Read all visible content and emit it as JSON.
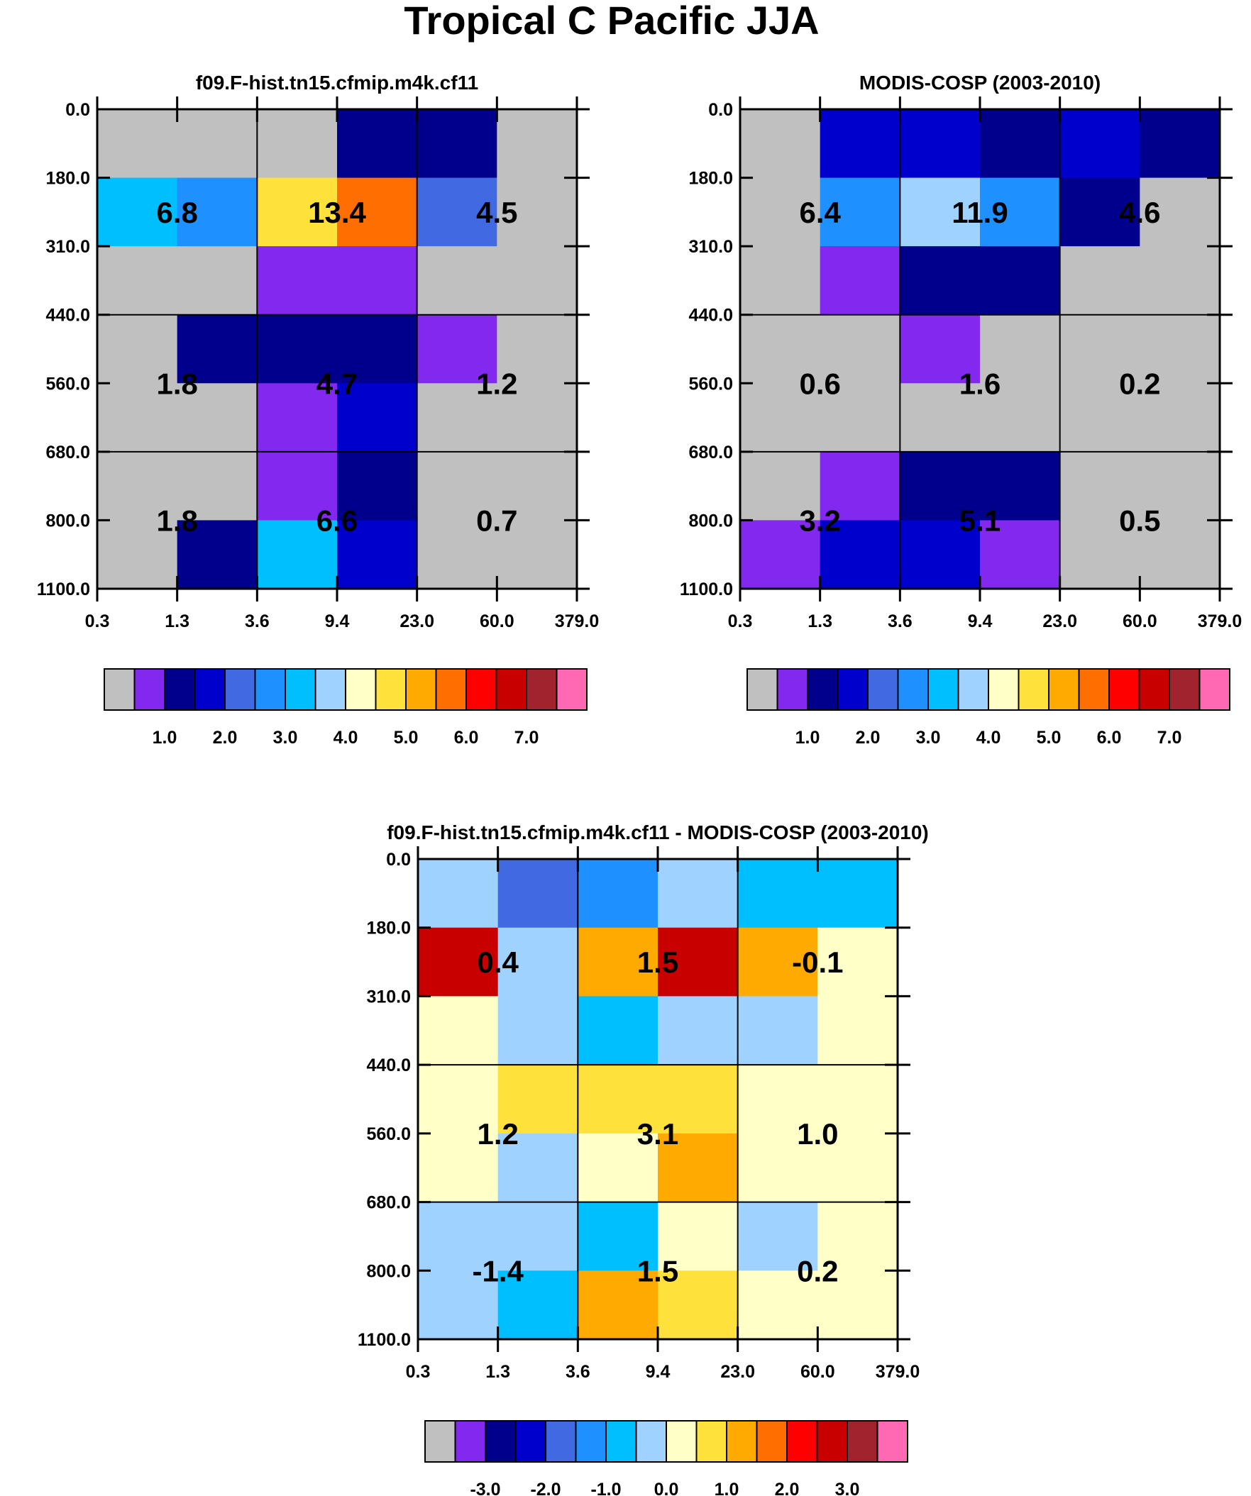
{
  "figure": {
    "title": "Tropical C Pacific JJA"
  },
  "colors": {
    "palette": [
      "#c0c0c0",
      "#8228ef",
      "#00008c",
      "#0000cd",
      "#4169e1",
      "#1e90ff",
      "#00bfff",
      "#a0d2ff",
      "#ffffc8",
      "#ffe13c",
      "#ffaa00",
      "#ff6e00",
      "#ff0000",
      "#c80000",
      "#a0232d",
      "#ff69b4"
    ]
  },
  "chart_data": [
    {
      "type": "heatmap",
      "title": "f09.F-hist.tn15.cfmip.m4k.cf11",
      "x_tick_labels": [
        "0.3",
        "1.3",
        "3.6",
        "9.4",
        "23.0",
        "60.0",
        "379.0"
      ],
      "y_tick_labels": [
        "0.0",
        "180.0",
        "310.0",
        "440.0",
        "560.0",
        "680.0",
        "800.0",
        "1100.0"
      ],
      "cell_color_index": [
        [
          0,
          0,
          0,
          2,
          2,
          0
        ],
        [
          6,
          5,
          9,
          11,
          4,
          0
        ],
        [
          0,
          0,
          1,
          1,
          0,
          0
        ],
        [
          0,
          2,
          2,
          2,
          1,
          0
        ],
        [
          0,
          0,
          1,
          3,
          0,
          0
        ],
        [
          0,
          0,
          1,
          2,
          0,
          0
        ],
        [
          0,
          2,
          6,
          3,
          0,
          0
        ]
      ],
      "annotations": [
        {
          "row": 1,
          "col": 1,
          "text": "6.8"
        },
        {
          "row": 1,
          "col": 3,
          "text": "13.4"
        },
        {
          "row": 1,
          "col": 5,
          "text": "4.5"
        },
        {
          "row": 3.5,
          "col": 1,
          "text": "1.8"
        },
        {
          "row": 3.5,
          "col": 3,
          "text": "4.7"
        },
        {
          "row": 3.5,
          "col": 5,
          "text": "1.2"
        },
        {
          "row": 5.5,
          "col": 1,
          "text": "1.8"
        },
        {
          "row": 5.5,
          "col": 3,
          "text": "6.6"
        },
        {
          "row": 5.5,
          "col": 5,
          "text": "0.7"
        }
      ],
      "colorbar": {
        "labels": [
          "1.0",
          "2.0",
          "3.0",
          "4.0",
          "5.0",
          "6.0",
          "7.0"
        ]
      }
    },
    {
      "type": "heatmap",
      "title": "MODIS-COSP (2003-2010)",
      "x_tick_labels": [
        "0.3",
        "1.3",
        "3.6",
        "9.4",
        "23.0",
        "60.0",
        "379.0"
      ],
      "y_tick_labels": [
        "0.0",
        "180.0",
        "310.0",
        "440.0",
        "560.0",
        "680.0",
        "800.0",
        "1100.0"
      ],
      "cell_color_index": [
        [
          0,
          3,
          3,
          2,
          3,
          2
        ],
        [
          0,
          5,
          7,
          5,
          2,
          0
        ],
        [
          0,
          1,
          2,
          2,
          0,
          0
        ],
        [
          0,
          0,
          1,
          0,
          0,
          0
        ],
        [
          0,
          0,
          0,
          0,
          0,
          0
        ],
        [
          0,
          1,
          2,
          2,
          0,
          0
        ],
        [
          1,
          3,
          3,
          1,
          0,
          0
        ]
      ],
      "annotations": [
        {
          "row": 1,
          "col": 1,
          "text": "6.4"
        },
        {
          "row": 1,
          "col": 3,
          "text": "11.9"
        },
        {
          "row": 1,
          "col": 5,
          "text": "4.6"
        },
        {
          "row": 3.5,
          "col": 1,
          "text": "0.6"
        },
        {
          "row": 3.5,
          "col": 3,
          "text": "1.6"
        },
        {
          "row": 3.5,
          "col": 5,
          "text": "0.2"
        },
        {
          "row": 5.5,
          "col": 1,
          "text": "3.2"
        },
        {
          "row": 5.5,
          "col": 3,
          "text": "5.1"
        },
        {
          "row": 5.5,
          "col": 5,
          "text": "0.5"
        }
      ],
      "colorbar": {
        "labels": [
          "1.0",
          "2.0",
          "3.0",
          "4.0",
          "5.0",
          "6.0",
          "7.0"
        ]
      }
    },
    {
      "type": "heatmap",
      "title": "f09.F-hist.tn15.cfmip.m4k.cf11 - MODIS-COSP (2003-2010)",
      "x_tick_labels": [
        "0.3",
        "1.3",
        "3.6",
        "9.4",
        "23.0",
        "60.0",
        "379.0"
      ],
      "y_tick_labels": [
        "0.0",
        "180.0",
        "310.0",
        "440.0",
        "560.0",
        "680.0",
        "800.0",
        "1100.0"
      ],
      "cell_color_index": [
        [
          7,
          4,
          5,
          7,
          6,
          6
        ],
        [
          13,
          7,
          10,
          13,
          10,
          8
        ],
        [
          8,
          7,
          6,
          7,
          7,
          8
        ],
        [
          8,
          9,
          9,
          9,
          8,
          8
        ],
        [
          8,
          7,
          8,
          10,
          8,
          8
        ],
        [
          7,
          7,
          6,
          8,
          7,
          8
        ],
        [
          7,
          6,
          10,
          9,
          8,
          8
        ]
      ],
      "annotations": [
        {
          "row": 1,
          "col": 1,
          "text": "0.4"
        },
        {
          "row": 1,
          "col": 3,
          "text": "1.5"
        },
        {
          "row": 1,
          "col": 5,
          "text": "-0.1"
        },
        {
          "row": 3.5,
          "col": 1,
          "text": "1.2"
        },
        {
          "row": 3.5,
          "col": 3,
          "text": "3.1"
        },
        {
          "row": 3.5,
          "col": 5,
          "text": "1.0"
        },
        {
          "row": 5.5,
          "col": 1,
          "text": "-1.4"
        },
        {
          "row": 5.5,
          "col": 3,
          "text": "1.5"
        },
        {
          "row": 5.5,
          "col": 5,
          "text": "0.2"
        }
      ],
      "colorbar": {
        "labels": [
          "-3.0",
          "-2.0",
          "-1.0",
          "0.0",
          "1.0",
          "2.0",
          "3.0"
        ]
      }
    }
  ]
}
